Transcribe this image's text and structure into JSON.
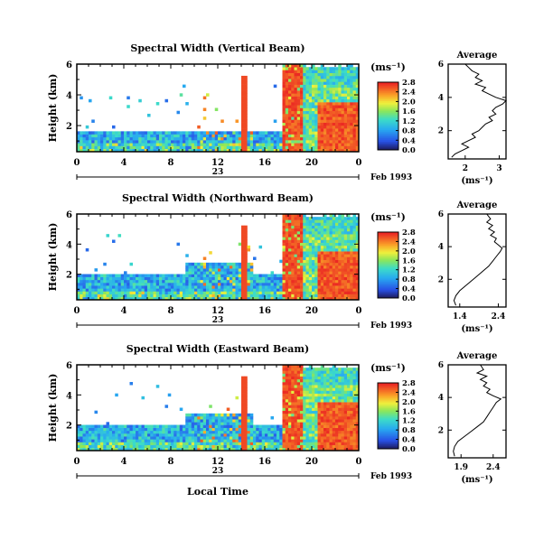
{
  "chart_data": [
    {
      "type": "heatmap",
      "title": "Spectral Width (Vertical Beam)",
      "ylabel": "Height (km)",
      "y_ticks": [
        "2",
        "4",
        "6"
      ],
      "x_ticks": [
        "0",
        "4",
        "8",
        "12",
        "16",
        "20",
        "0"
      ],
      "xlim": [
        0,
        24
      ],
      "ylim": [
        0.3,
        6
      ],
      "date_day": "23",
      "date_label": "Feb 1993",
      "colorbar": {
        "unit": "(ms⁻¹)",
        "tick_labels": [
          "0.0",
          "0.4",
          "0.8",
          "1.2",
          "1.6",
          "2.0",
          "2.4",
          "2.8"
        ],
        "range": [
          0,
          2.8
        ]
      },
      "average": {
        "title": "Average",
        "xlabel": "(ms⁻¹)",
        "x_ticks": [
          "2",
          "3"
        ],
        "xlim": [
          1.5,
          3.2
        ],
        "y_ticks": [
          "2",
          "4",
          "6"
        ],
        "ylim": [
          0.3,
          6
        ],
        "profile": [
          [
            1.6,
            0.4
          ],
          [
            1.7,
            0.6
          ],
          [
            1.9,
            0.8
          ],
          [
            2.1,
            1.0
          ],
          [
            1.9,
            1.2
          ],
          [
            2.1,
            1.4
          ],
          [
            2.3,
            1.6
          ],
          [
            2.2,
            1.8
          ],
          [
            2.4,
            2.0
          ],
          [
            2.5,
            2.2
          ],
          [
            2.6,
            2.4
          ],
          [
            2.8,
            2.6
          ],
          [
            2.7,
            2.8
          ],
          [
            2.9,
            3.0
          ],
          [
            2.8,
            3.2
          ],
          [
            2.9,
            3.4
          ],
          [
            3.1,
            3.6
          ],
          [
            3.2,
            3.8
          ],
          [
            2.9,
            4.0
          ],
          [
            2.7,
            4.2
          ],
          [
            2.5,
            4.4
          ],
          [
            2.6,
            4.6
          ],
          [
            2.3,
            4.8
          ],
          [
            2.5,
            5.0
          ],
          [
            2.3,
            5.2
          ],
          [
            2.4,
            5.4
          ],
          [
            2.2,
            5.6
          ],
          [
            2.1,
            5.8
          ],
          [
            2.0,
            6.0
          ]
        ]
      }
    },
    {
      "type": "heatmap",
      "title": "Spectral Width (Northward Beam)",
      "ylabel": "Height (km)",
      "y_ticks": [
        "2",
        "4",
        "6"
      ],
      "x_ticks": [
        "0",
        "4",
        "8",
        "12",
        "16",
        "20",
        "0"
      ],
      "xlim": [
        0,
        24
      ],
      "ylim": [
        0.3,
        6
      ],
      "date_day": "23",
      "date_label": "Feb 1993",
      "colorbar": {
        "unit": "(ms⁻¹)",
        "tick_labels": [
          "0.0",
          "0.4",
          "0.8",
          "1.2",
          "1.6",
          "2.0",
          "2.4",
          "2.8"
        ],
        "range": [
          0,
          2.8
        ]
      },
      "average": {
        "title": "Average",
        "xlabel": "(ms⁻¹)",
        "x_ticks": [
          "1.4",
          "2.4"
        ],
        "xlim": [
          1.1,
          2.6
        ],
        "y_ticks": [
          "2",
          "4",
          "6"
        ],
        "ylim": [
          0.3,
          6
        ],
        "profile": [
          [
            1.3,
            0.4
          ],
          [
            1.25,
            0.7
          ],
          [
            1.3,
            1.0
          ],
          [
            1.4,
            1.3
          ],
          [
            1.55,
            1.6
          ],
          [
            1.7,
            1.9
          ],
          [
            1.85,
            2.2
          ],
          [
            2.0,
            2.5
          ],
          [
            2.15,
            2.8
          ],
          [
            2.25,
            3.1
          ],
          [
            2.35,
            3.4
          ],
          [
            2.45,
            3.7
          ],
          [
            2.5,
            3.9
          ],
          [
            2.4,
            4.1
          ],
          [
            2.3,
            4.3
          ],
          [
            2.35,
            4.5
          ],
          [
            2.2,
            4.7
          ],
          [
            2.3,
            4.9
          ],
          [
            2.15,
            5.1
          ],
          [
            2.25,
            5.3
          ],
          [
            2.1,
            5.5
          ],
          [
            2.2,
            5.7
          ],
          [
            2.1,
            6.0
          ]
        ]
      }
    },
    {
      "type": "heatmap",
      "title": "Spectral Width (Eastward Beam)",
      "ylabel": "Height (km)",
      "xlabel": "Local Time",
      "y_ticks": [
        "2",
        "4",
        "6"
      ],
      "x_ticks": [
        "0",
        "4",
        "8",
        "12",
        "16",
        "20",
        "0"
      ],
      "xlim": [
        0,
        24
      ],
      "ylim": [
        0.3,
        6
      ],
      "date_day": "23",
      "date_label": "Feb 1993",
      "colorbar": {
        "unit": "(ms⁻¹)",
        "tick_labels": [
          "0.0",
          "0.4",
          "0.8",
          "1.2",
          "1.6",
          "2.0",
          "2.4",
          "2.8"
        ],
        "range": [
          0,
          2.8
        ]
      },
      "average": {
        "title": "Average",
        "xlabel": "(ms⁻¹)",
        "x_ticks": [
          "1.9",
          "2.4"
        ],
        "xlim": [
          1.7,
          2.6
        ],
        "y_ticks": [
          "2",
          "4",
          "6"
        ],
        "ylim": [
          0.3,
          6
        ],
        "profile": [
          [
            1.8,
            0.4
          ],
          [
            1.78,
            0.7
          ],
          [
            1.8,
            1.0
          ],
          [
            1.85,
            1.3
          ],
          [
            1.95,
            1.6
          ],
          [
            2.05,
            1.9
          ],
          [
            2.15,
            2.2
          ],
          [
            2.25,
            2.5
          ],
          [
            2.3,
            2.8
          ],
          [
            2.35,
            3.1
          ],
          [
            2.4,
            3.4
          ],
          [
            2.45,
            3.7
          ],
          [
            2.52,
            3.9
          ],
          [
            2.4,
            4.1
          ],
          [
            2.3,
            4.3
          ],
          [
            2.35,
            4.5
          ],
          [
            2.25,
            4.7
          ],
          [
            2.3,
            4.9
          ],
          [
            2.2,
            5.1
          ],
          [
            2.3,
            5.3
          ],
          [
            2.15,
            5.5
          ],
          [
            2.25,
            5.7
          ],
          [
            2.2,
            6.0
          ]
        ]
      }
    }
  ]
}
